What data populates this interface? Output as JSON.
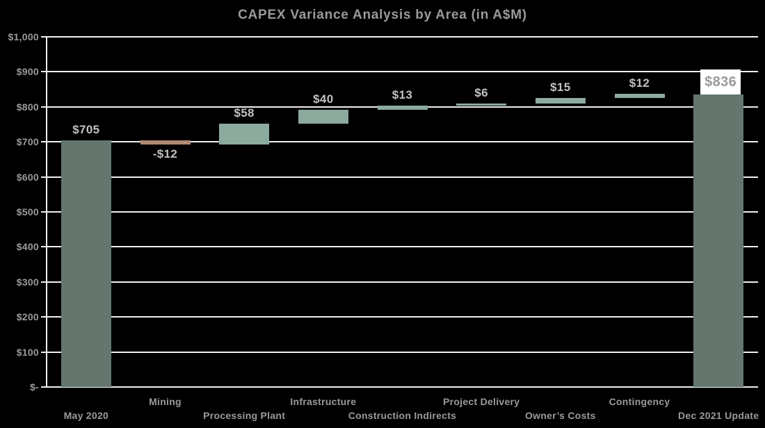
{
  "chart_data": {
    "type": "bar",
    "subtype": "waterfall",
    "title": "CAPEX Variance Analysis by Area (in A$M)",
    "categories": [
      "May 2020",
      "Mining",
      "Processing Plant",
      "Infrastructure",
      "Construction Indirects",
      "Project Delivery",
      "Owner’s Costs",
      "Contingency",
      "Dec 2021 Update"
    ],
    "values": [
      705,
      -12,
      58,
      40,
      13,
      6,
      15,
      12,
      836
    ],
    "bar_types": [
      "total",
      "decrease",
      "increase",
      "increase",
      "increase",
      "increase",
      "increase",
      "increase",
      "total"
    ],
    "data_labels": [
      "$705",
      "-$12",
      "$58",
      "$40",
      "$13",
      "$6",
      "$15",
      "$12",
      "$836"
    ],
    "ylim": [
      0,
      1000
    ],
    "ytick_step": 100,
    "ytick_labels": [
      "$-",
      "$100",
      "$200",
      "$300",
      "$400",
      "$500",
      "$600",
      "$700",
      "$800",
      "$900",
      "$1,000"
    ],
    "grid": "horizontal",
    "legend": "none",
    "final_label_boxed": true,
    "colors": {
      "background": "#000000",
      "gridline": "#f0f0f0",
      "total_bar": "#65766f",
      "increase_bar": "#8caa9e",
      "decrease_bar": "#ae8a73",
      "axis_text": "#9a9a9a",
      "data_label_text": "#bfc3c1",
      "final_label_bg": "#ffffff",
      "final_label_text": "#9a9a9a"
    }
  }
}
